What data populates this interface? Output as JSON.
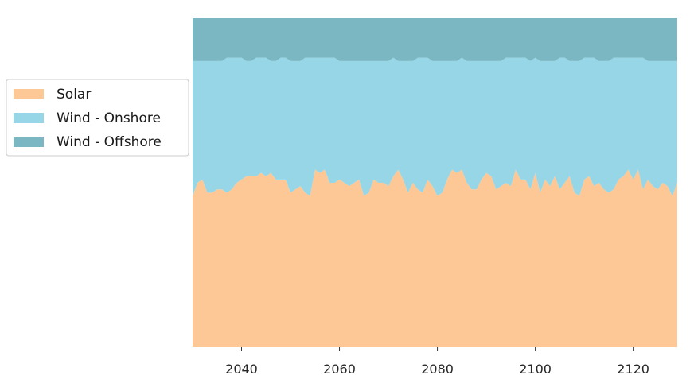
{
  "chart_data": {
    "type": "area",
    "stacked": true,
    "normalized": true,
    "title": "",
    "xlabel": "",
    "ylabel": "",
    "xlim": [
      2030,
      2129
    ],
    "ylim": [
      0,
      1
    ],
    "x_ticks": [
      2040,
      2060,
      2080,
      2100,
      2120
    ],
    "y_axis_visible": false,
    "grid": false,
    "legend_position": "left",
    "x": {
      "start": 2030,
      "step": 1,
      "count": 100
    },
    "series": [
      {
        "name": "Solar",
        "color": "#fdc896",
        "values": [
          0.46,
          0.5,
          0.51,
          0.47,
          0.47,
          0.48,
          0.48,
          0.47,
          0.48,
          0.5,
          0.51,
          0.52,
          0.52,
          0.52,
          0.53,
          0.52,
          0.53,
          0.51,
          0.51,
          0.51,
          0.47,
          0.48,
          0.49,
          0.47,
          0.46,
          0.54,
          0.53,
          0.54,
          0.5,
          0.5,
          0.51,
          0.5,
          0.49,
          0.5,
          0.51,
          0.46,
          0.47,
          0.51,
          0.5,
          0.5,
          0.49,
          0.52,
          0.54,
          0.51,
          0.47,
          0.5,
          0.48,
          0.47,
          0.51,
          0.49,
          0.46,
          0.47,
          0.51,
          0.54,
          0.53,
          0.54,
          0.5,
          0.48,
          0.48,
          0.51,
          0.53,
          0.52,
          0.48,
          0.49,
          0.5,
          0.49,
          0.54,
          0.51,
          0.51,
          0.48,
          0.53,
          0.47,
          0.51,
          0.49,
          0.52,
          0.48,
          0.5,
          0.52,
          0.47,
          0.46,
          0.51,
          0.52,
          0.49,
          0.5,
          0.48,
          0.47,
          0.48,
          0.51,
          0.52,
          0.54,
          0.51,
          0.54,
          0.48,
          0.51,
          0.49,
          0.48,
          0.5,
          0.49,
          0.46,
          0.5
        ]
      },
      {
        "name": "Wind - Onshore",
        "color": "#96d6e7",
        "values": [
          0.41,
          0.37,
          0.36,
          0.4,
          0.4,
          0.39,
          0.39,
          0.41,
          0.4,
          0.38,
          0.37,
          0.35,
          0.35,
          0.36,
          0.35,
          0.36,
          0.34,
          0.36,
          0.37,
          0.37,
          0.4,
          0.39,
          0.38,
          0.41,
          0.42,
          0.34,
          0.35,
          0.34,
          0.38,
          0.38,
          0.36,
          0.37,
          0.38,
          0.37,
          0.36,
          0.41,
          0.4,
          0.36,
          0.37,
          0.37,
          0.38,
          0.36,
          0.33,
          0.36,
          0.4,
          0.37,
          0.4,
          0.41,
          0.37,
          0.38,
          0.41,
          0.4,
          0.36,
          0.33,
          0.34,
          0.34,
          0.37,
          0.39,
          0.39,
          0.36,
          0.34,
          0.35,
          0.39,
          0.38,
          0.38,
          0.39,
          0.34,
          0.37,
          0.37,
          0.39,
          0.35,
          0.4,
          0.36,
          0.38,
          0.35,
          0.4,
          0.38,
          0.35,
          0.4,
          0.41,
          0.37,
          0.36,
          0.39,
          0.37,
          0.39,
          0.4,
          0.4,
          0.37,
          0.36,
          0.34,
          0.37,
          0.34,
          0.4,
          0.36,
          0.38,
          0.39,
          0.37,
          0.38,
          0.41,
          0.37
        ]
      },
      {
        "name": "Wind - Offshore",
        "color": "#7ab7c2",
        "values": [
          0.13,
          0.13,
          0.13,
          0.13,
          0.13,
          0.13,
          0.13,
          0.12,
          0.12,
          0.12,
          0.12,
          0.13,
          0.13,
          0.12,
          0.12,
          0.12,
          0.13,
          0.13,
          0.12,
          0.12,
          0.13,
          0.13,
          0.13,
          0.12,
          0.12,
          0.12,
          0.12,
          0.12,
          0.12,
          0.12,
          0.13,
          0.13,
          0.13,
          0.13,
          0.13,
          0.13,
          0.13,
          0.13,
          0.13,
          0.13,
          0.13,
          0.12,
          0.13,
          0.13,
          0.13,
          0.13,
          0.12,
          0.12,
          0.12,
          0.13,
          0.13,
          0.13,
          0.13,
          0.13,
          0.13,
          0.12,
          0.13,
          0.13,
          0.13,
          0.13,
          0.13,
          0.13,
          0.13,
          0.13,
          0.12,
          0.12,
          0.12,
          0.12,
          0.12,
          0.13,
          0.12,
          0.13,
          0.13,
          0.13,
          0.13,
          0.12,
          0.12,
          0.13,
          0.13,
          0.13,
          0.12,
          0.12,
          0.12,
          0.13,
          0.13,
          0.13,
          0.12,
          0.12,
          0.12,
          0.12,
          0.12,
          0.12,
          0.12,
          0.13,
          0.13,
          0.13,
          0.13,
          0.13,
          0.13,
          0.13
        ]
      }
    ]
  }
}
